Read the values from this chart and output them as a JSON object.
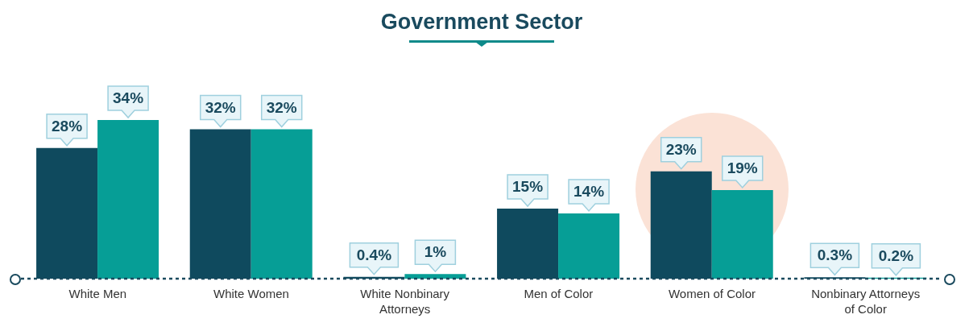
{
  "chart_data": {
    "type": "bar",
    "title": "Government Sector",
    "categories": [
      "White Men",
      "White Women",
      "White Nonbinary Attorneys",
      "Men of Color",
      "Women of Color",
      "Nonbinary Attorneys of Color"
    ],
    "series": [
      {
        "color": "#0f4a5e",
        "values": [
          28,
          32,
          0.4,
          15,
          23,
          0.3
        ],
        "value_labels": [
          "28%",
          "32%",
          "0.4%",
          "15%",
          "23%",
          "0.3%"
        ]
      },
      {
        "color": "#069e96",
        "values": [
          34,
          32,
          1,
          14,
          19,
          0.2
        ],
        "value_labels": [
          "34%",
          "32%",
          "1%",
          "14%",
          "19%",
          "0.2%"
        ]
      }
    ]
  }
}
